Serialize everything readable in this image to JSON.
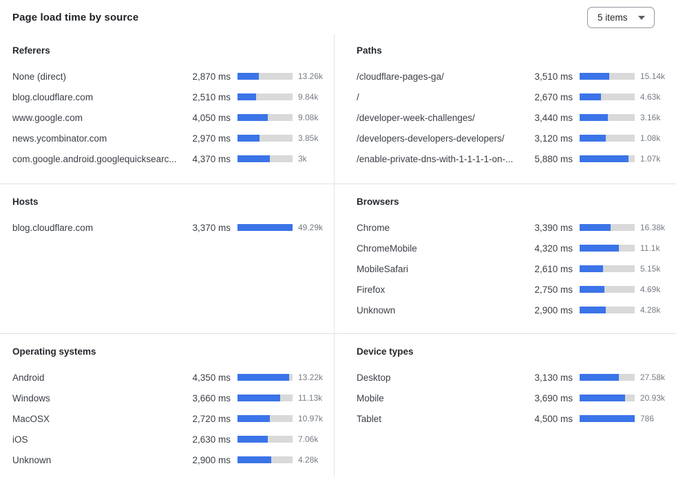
{
  "header": {
    "title": "Page load time by source",
    "items_dropdown_label": "5 items"
  },
  "colors": {
    "bar_fill": "#3b74e8",
    "bar_track": "#d9d9d9",
    "divider": "#e0e0e0",
    "count_text": "#767c84",
    "label_text": "#3a3e45"
  },
  "chart_data": [
    {
      "type": "bar",
      "orientation": "horizontal",
      "title": "Referers",
      "unit": "ms",
      "categories": [
        "None (direct)",
        "blog.cloudflare.com",
        "www.google.com",
        "news.ycombinator.com",
        "com.google.android.googlequicksearc..."
      ],
      "values": [
        2870,
        2510,
        4050,
        2970,
        4370
      ],
      "value_labels": [
        "2,870 ms",
        "2,510 ms",
        "4,050 ms",
        "2,970 ms",
        "4,370 ms"
      ],
      "counts": [
        "13.26k",
        "9.84k",
        "9.08k",
        "3.85k",
        "3k"
      ],
      "bar_percents": [
        39,
        34,
        55,
        40,
        59
      ]
    },
    {
      "type": "bar",
      "orientation": "horizontal",
      "title": "Paths",
      "unit": "ms",
      "categories": [
        "/cloudflare-pages-ga/",
        "/",
        "/developer-week-challenges/",
        "/developers-developers-developers/",
        "/enable-private-dns-with-1-1-1-1-on-..."
      ],
      "values": [
        3510,
        2670,
        3440,
        3120,
        5880
      ],
      "value_labels": [
        "3,510 ms",
        "2,670 ms",
        "3,440 ms",
        "3,120 ms",
        "5,880 ms"
      ],
      "counts": [
        "15.14k",
        "4.63k",
        "3.16k",
        "1.08k",
        "1.07k"
      ],
      "bar_percents": [
        54,
        39,
        51,
        47,
        89
      ]
    },
    {
      "type": "bar",
      "orientation": "horizontal",
      "title": "Hosts",
      "unit": "ms",
      "categories": [
        "blog.cloudflare.com"
      ],
      "values": [
        3370
      ],
      "value_labels": [
        "3,370 ms"
      ],
      "counts": [
        "49.29k"
      ],
      "bar_percents": [
        100
      ]
    },
    {
      "type": "bar",
      "orientation": "horizontal",
      "title": "Browsers",
      "unit": "ms",
      "categories": [
        "Chrome",
        "ChromeMobile",
        "MobileSafari",
        "Firefox",
        "Unknown"
      ],
      "values": [
        3390,
        4320,
        2610,
        2750,
        2900
      ],
      "value_labels": [
        "3,390 ms",
        "4,320 ms",
        "2,610 ms",
        "2,750 ms",
        "2,900 ms"
      ],
      "counts": [
        "16.38k",
        "11.1k",
        "5.15k",
        "4.69k",
        "4.28k"
      ],
      "bar_percents": [
        56,
        71,
        42,
        45,
        48
      ]
    },
    {
      "type": "bar",
      "orientation": "horizontal",
      "title": "Operating systems",
      "unit": "ms",
      "categories": [
        "Android",
        "Windows",
        "MacOSX",
        "iOS",
        "Unknown"
      ],
      "values": [
        4350,
        3660,
        2720,
        2630,
        2900
      ],
      "value_labels": [
        "4,350 ms",
        "3,660 ms",
        "2,720 ms",
        "2,630 ms",
        "2,900 ms"
      ],
      "counts": [
        "13.22k",
        "11.13k",
        "10.97k",
        "7.06k",
        "4.28k"
      ],
      "bar_percents": [
        94,
        78,
        59,
        55,
        61
      ]
    },
    {
      "type": "bar",
      "orientation": "horizontal",
      "title": "Device types",
      "unit": "ms",
      "categories": [
        "Desktop",
        "Mobile",
        "Tablet"
      ],
      "values": [
        3130,
        3690,
        4500
      ],
      "value_labels": [
        "3,130 ms",
        "3,690 ms",
        "4,500 ms"
      ],
      "counts": [
        "27.58k",
        "20.93k",
        "786"
      ],
      "bar_percents": [
        71,
        83,
        100
      ]
    }
  ]
}
